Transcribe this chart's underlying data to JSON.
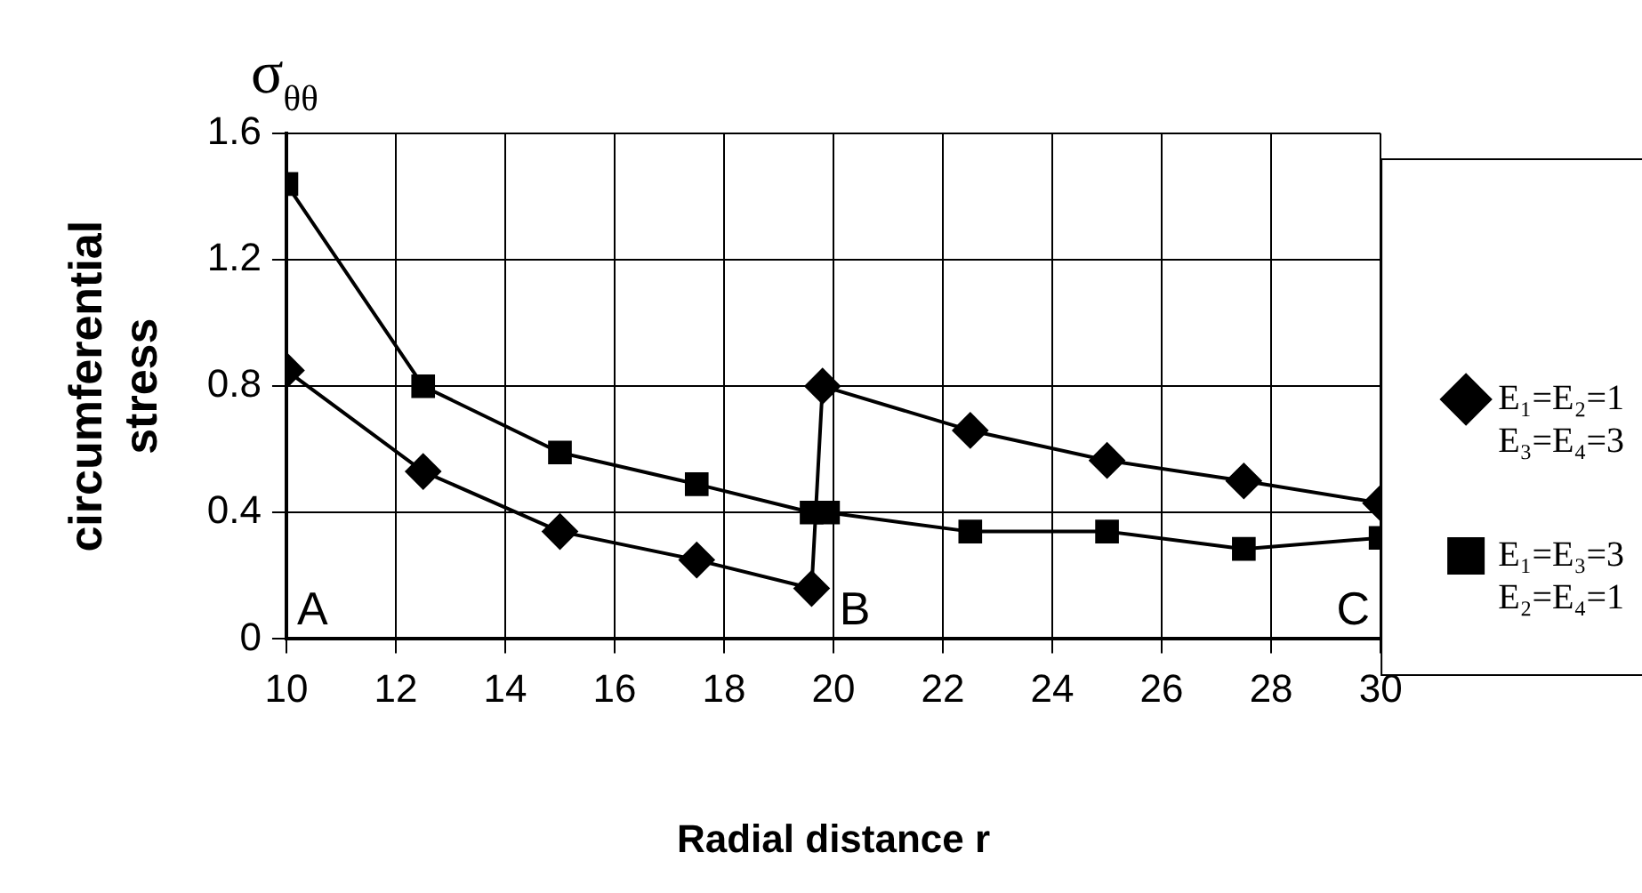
{
  "chart_data": {
    "type": "line",
    "title": "σ$_{θθ}$",
    "ylabel": "circumferential stress",
    "xlabel": "Radial distance r",
    "xlim": [
      10,
      30
    ],
    "xticks": [
      10,
      12,
      14,
      16,
      18,
      20,
      22,
      24,
      26,
      28,
      30
    ],
    "ylim": [
      0,
      1.6
    ],
    "yticks": [
      0,
      0.4,
      0.8,
      1.2,
      1.6
    ],
    "grid": true,
    "legend": "right",
    "line_style": "solid",
    "annotations": [
      "A",
      "B",
      "C"
    ],
    "series": [
      {
        "name": "E₁=E₂=1\nE₃=E₄=3",
        "color": "#000000",
        "marker": "diamond",
        "x": [
          10,
          12.5,
          15,
          17.5,
          19.6,
          19.8,
          22.5,
          25,
          27.5,
          30
        ],
        "values": [
          0.85,
          0.53,
          0.34,
          0.25,
          0.16,
          0.8,
          0.66,
          0.565,
          0.5,
          0.43
        ]
      },
      {
        "name": "E₁=E₃=3\nE₂=E₄=1",
        "color": "#000000",
        "marker": "square",
        "x": [
          10,
          12.5,
          15,
          17.5,
          19.6,
          19.9,
          22.5,
          25,
          27.5,
          30
        ],
        "values": [
          1.44,
          0.8,
          0.59,
          0.49,
          0.4,
          0.4,
          0.34,
          0.34,
          0.285,
          0.32
        ]
      }
    ]
  }
}
